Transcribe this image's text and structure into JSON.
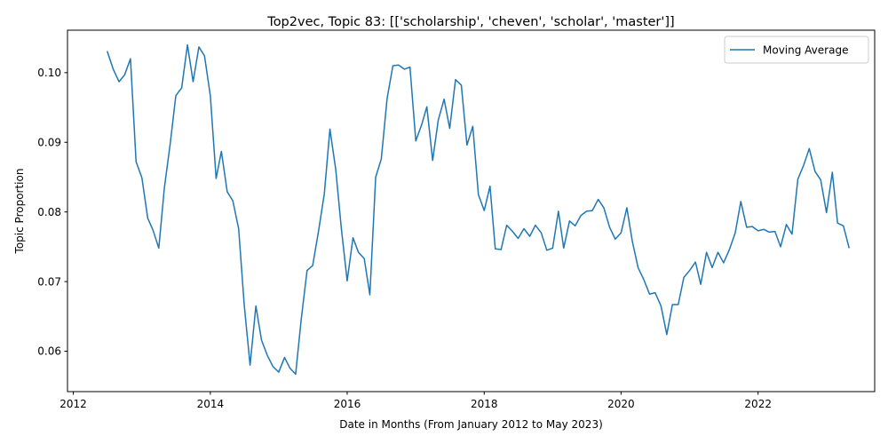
{
  "chart_data": {
    "type": "line",
    "title": "Top2vec, Topic 83: [['scholarship', 'cheven', 'scholar', 'master']]",
    "xlabel": "Date in Months (From January 2012 to May 2023)",
    "ylabel": "Topic Proportion",
    "xlim": [
      "2011-12-01",
      "2023-09-15"
    ],
    "ylim": [
      0.0542,
      0.1061
    ],
    "x_ticks": [
      "2012",
      "2014",
      "2016",
      "2018",
      "2020",
      "2022"
    ],
    "y_ticks": [
      "0.06",
      "0.07",
      "0.08",
      "0.09",
      "0.10"
    ],
    "grid": false,
    "legend_position": "upper right",
    "colors": {
      "series": "#1f77b4"
    },
    "series": [
      {
        "name": "Moving Average",
        "x": [
          "2012-07",
          "2012-08",
          "2012-09",
          "2012-10",
          "2012-11",
          "2012-12",
          "2013-01",
          "2013-02",
          "2013-03",
          "2013-04",
          "2013-05",
          "2013-06",
          "2013-07",
          "2013-08",
          "2013-09",
          "2013-10",
          "2013-11",
          "2013-12",
          "2014-01",
          "2014-02",
          "2014-03",
          "2014-04",
          "2014-05",
          "2014-06",
          "2014-07",
          "2014-08",
          "2014-09",
          "2014-10",
          "2014-11",
          "2014-12",
          "2015-01",
          "2015-02",
          "2015-03",
          "2015-04",
          "2015-05",
          "2015-06",
          "2015-07",
          "2015-08",
          "2015-09",
          "2015-10",
          "2015-11",
          "2015-12",
          "2016-01",
          "2016-02",
          "2016-03",
          "2016-04",
          "2016-05",
          "2016-06",
          "2016-07",
          "2016-08",
          "2016-09",
          "2016-10",
          "2016-11",
          "2016-12",
          "2017-01",
          "2017-02",
          "2017-03",
          "2017-04",
          "2017-05",
          "2017-06",
          "2017-07",
          "2017-08",
          "2017-09",
          "2017-10",
          "2017-11",
          "2017-12",
          "2018-01",
          "2018-02",
          "2018-03",
          "2018-04",
          "2018-05",
          "2018-06",
          "2018-07",
          "2018-08",
          "2018-09",
          "2018-10",
          "2018-11",
          "2018-12",
          "2019-01",
          "2019-02",
          "2019-03",
          "2019-04",
          "2019-05",
          "2019-06",
          "2019-07",
          "2019-08",
          "2019-09",
          "2019-10",
          "2019-11",
          "2019-12",
          "2020-01",
          "2020-02",
          "2020-03",
          "2020-04",
          "2020-05",
          "2020-06",
          "2020-07",
          "2020-08",
          "2020-09",
          "2020-10",
          "2020-11",
          "2020-12",
          "2021-01",
          "2021-02",
          "2021-03",
          "2021-04",
          "2021-05",
          "2021-06",
          "2021-07",
          "2021-08",
          "2021-09",
          "2021-10",
          "2021-11",
          "2021-12",
          "2022-01",
          "2022-02",
          "2022-03",
          "2022-04",
          "2022-05",
          "2022-06",
          "2022-07",
          "2022-08",
          "2022-09",
          "2022-10",
          "2022-11",
          "2022-12",
          "2023-01",
          "2023-02",
          "2023-03",
          "2023-04",
          "2023-05"
        ],
        "values": [
          0.103,
          0.1005,
          0.0987,
          0.0997,
          0.102,
          0.0872,
          0.0849,
          0.0791,
          0.0774,
          0.0748,
          0.0835,
          0.0898,
          0.0967,
          0.0978,
          0.104,
          0.0987,
          0.1037,
          0.1024,
          0.0967,
          0.0848,
          0.0887,
          0.0829,
          0.0816,
          0.0776,
          0.0666,
          0.058,
          0.0665,
          0.0616,
          0.0594,
          0.0578,
          0.057,
          0.0591,
          0.0576,
          0.0567,
          0.0646,
          0.0716,
          0.0723,
          0.0772,
          0.0826,
          0.0919,
          0.0861,
          0.0776,
          0.0701,
          0.0763,
          0.0742,
          0.0733,
          0.0681,
          0.085,
          0.0876,
          0.0963,
          0.101,
          0.1011,
          0.1005,
          0.1008,
          0.0902,
          0.0925,
          0.0951,
          0.0874,
          0.0932,
          0.0962,
          0.092,
          0.099,
          0.0982,
          0.0896,
          0.0923,
          0.0825,
          0.0802,
          0.0837,
          0.0747,
          0.0746,
          0.0781,
          0.0772,
          0.0762,
          0.0776,
          0.0765,
          0.0781,
          0.077,
          0.0745,
          0.0748,
          0.0801,
          0.0748,
          0.0787,
          0.078,
          0.0795,
          0.0801,
          0.0802,
          0.0818,
          0.0806,
          0.0778,
          0.0761,
          0.077,
          0.0806,
          0.0758,
          0.072,
          0.0703,
          0.0682,
          0.0684,
          0.0665,
          0.0624,
          0.0667,
          0.0667,
          0.0706,
          0.0716,
          0.0728,
          0.0696,
          0.0742,
          0.072,
          0.0742,
          0.0727,
          0.0746,
          0.077,
          0.0815,
          0.0778,
          0.0779,
          0.0773,
          0.0775,
          0.0771,
          0.0772,
          0.075,
          0.0782,
          0.0768,
          0.0847,
          0.0867,
          0.0891,
          0.0858,
          0.0846,
          0.0799,
          0.0857,
          0.0784,
          0.078,
          0.0749
        ]
      }
    ]
  }
}
